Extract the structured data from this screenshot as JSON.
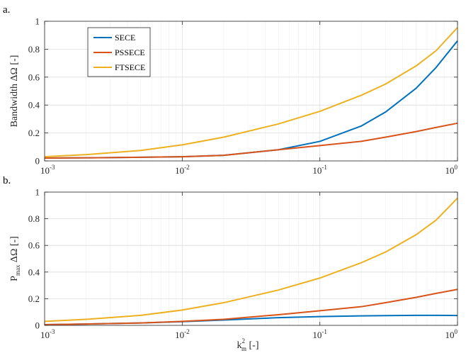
{
  "chart_data": [
    {
      "type": "line",
      "panel_label": "a.",
      "ylabel": "Bandwidth ΔΩ [-]",
      "xlabel": "",
      "xscale": "log",
      "xlim": [
        0.001,
        1
      ],
      "ylim": [
        0,
        1
      ],
      "xticks": [
        0.001,
        0.01,
        0.1,
        1
      ],
      "xtick_labels": [
        {
          "base": "10",
          "exp": "-3"
        },
        {
          "base": "10",
          "exp": "-2"
        },
        {
          "base": "10",
          "exp": "-1"
        },
        {
          "base": "10",
          "exp": "0"
        }
      ],
      "yticks": [
        0,
        0.2,
        0.4,
        0.6,
        0.8,
        1
      ],
      "ytick_labels": [
        "0",
        "0.2",
        "0.4",
        "0.6",
        "0.8",
        "1"
      ],
      "grid": true,
      "legend_position": "top-left",
      "x": [
        0.001,
        0.002,
        0.005,
        0.01,
        0.02,
        0.05,
        0.1,
        0.2,
        0.3,
        0.5,
        0.7,
        1
      ],
      "series": [
        {
          "name": "SECE",
          "color": "#0072BD",
          "values": [
            0.02,
            0.022,
            0.026,
            0.03,
            0.04,
            0.08,
            0.14,
            0.25,
            0.35,
            0.52,
            0.67,
            0.86
          ]
        },
        {
          "name": "PSSECE",
          "color": "#D95319",
          "values": [
            0.02,
            0.022,
            0.026,
            0.03,
            0.04,
            0.08,
            0.11,
            0.14,
            0.17,
            0.21,
            0.24,
            0.27
          ]
        },
        {
          "name": "FTSECE",
          "color": "#EDB120",
          "values": [
            0.03,
            0.045,
            0.075,
            0.115,
            0.17,
            0.265,
            0.355,
            0.47,
            0.55,
            0.68,
            0.79,
            0.955
          ]
        }
      ]
    },
    {
      "type": "line",
      "panel_label": "b.",
      "ylabel": "P_max ΔΩ [-]",
      "ylabel_main": "P",
      "ylabel_sub": "max",
      "ylabel_rest": "ΔΩ [-]",
      "xlabel": "k_m^2 [-]",
      "xlabel_main": "k",
      "xlabel_sup": "2",
      "xlabel_sub": "m",
      "xlabel_rest": "[-]",
      "xscale": "log",
      "xlim": [
        0.001,
        1
      ],
      "ylim": [
        0,
        1
      ],
      "xticks": [
        0.001,
        0.01,
        0.1,
        1
      ],
      "xtick_labels": [
        {
          "base": "10",
          "exp": "-3"
        },
        {
          "base": "10",
          "exp": "-2"
        },
        {
          "base": "10",
          "exp": "-1"
        },
        {
          "base": "10",
          "exp": "0"
        }
      ],
      "yticks": [
        0,
        0.2,
        0.4,
        0.6,
        0.8,
        1
      ],
      "ytick_labels": [
        "0",
        "0.2",
        "0.4",
        "0.6",
        "0.8",
        "1"
      ],
      "grid": true,
      "x": [
        0.001,
        0.002,
        0.005,
        0.01,
        0.02,
        0.05,
        0.1,
        0.2,
        0.3,
        0.5,
        0.7,
        1
      ],
      "series": [
        {
          "name": "SECE",
          "color": "#0072BD",
          "values": [
            0.005,
            0.01,
            0.018,
            0.028,
            0.04,
            0.058,
            0.066,
            0.071,
            0.073,
            0.075,
            0.075,
            0.074
          ]
        },
        {
          "name": "PSSECE",
          "color": "#D95319",
          "values": [
            0.005,
            0.01,
            0.018,
            0.03,
            0.045,
            0.08,
            0.11,
            0.14,
            0.17,
            0.21,
            0.24,
            0.27
          ]
        },
        {
          "name": "FTSECE",
          "color": "#EDB120",
          "values": [
            0.03,
            0.045,
            0.075,
            0.115,
            0.17,
            0.265,
            0.355,
            0.47,
            0.55,
            0.68,
            0.79,
            0.955
          ]
        }
      ]
    }
  ]
}
